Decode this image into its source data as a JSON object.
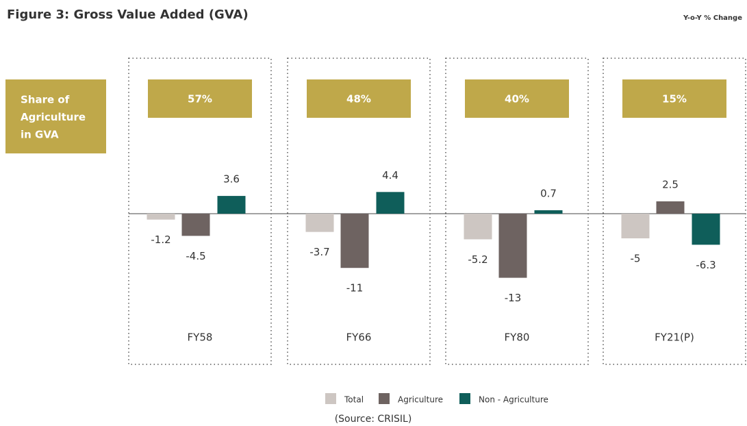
{
  "chart_data": {
    "type": "bar",
    "title": "Figure 3: Gross Value Added (GVA)",
    "subtitle": "Y-o-Y % Change",
    "source": "(Source: CRISIL)",
    "categories": [
      "FY58",
      "FY66",
      "FY80",
      "FY21(P)"
    ],
    "series": [
      {
        "name": "Total",
        "color": "#cdc6c2",
        "values": [
          -1.2,
          -3.7,
          -5.2,
          -5
        ]
      },
      {
        "name": "Agriculture",
        "color": "#6e6361",
        "values": [
          -4.5,
          -11,
          -13,
          2.5
        ]
      },
      {
        "name": "Non - Agriculture",
        "color": "#0f5e5a",
        "values": [
          3.6,
          4.4,
          0.7,
          -6.3
        ]
      }
    ],
    "ylim": [
      -15,
      7
    ],
    "share": {
      "label": [
        "Share of",
        "Agriculture",
        "in GVA"
      ],
      "color": "#bfa84a",
      "values": [
        57,
        48,
        40,
        15
      ],
      "value_labels": [
        "57%",
        "48%",
        "40%",
        "15%"
      ]
    }
  }
}
